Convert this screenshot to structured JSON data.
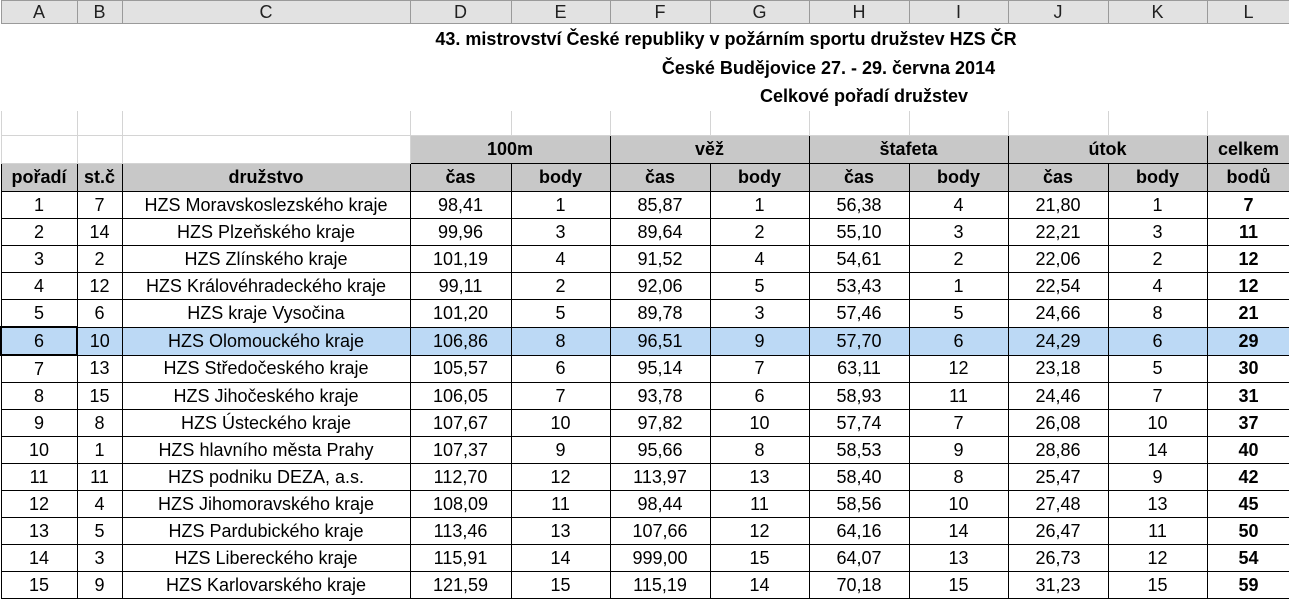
{
  "columns": [
    "A",
    "B",
    "C",
    "D",
    "E",
    "F",
    "G",
    "H",
    "I",
    "J",
    "K",
    "L"
  ],
  "title": "43. mistrovství České republiky v požárním sportu družstev HZS ČR",
  "subtitle": "České Budějovice 27. - 29. června 2014",
  "subtitle2": "Celkové pořadí družstev",
  "group_headers": {
    "g100m": "100m",
    "veze": "věž",
    "stafeta": "štafeta",
    "utok": "útok",
    "celkem": "celkem"
  },
  "headers": {
    "poradi": "pořadí",
    "stc": "st.č",
    "druzstvo": "družstvo",
    "cas": "čas",
    "body": "body",
    "bodu": "bodů"
  },
  "rows": [
    [
      "1",
      "7",
      "HZS Moravskoslezského kraje",
      "98,41",
      "1",
      "85,87",
      "1",
      "56,38",
      "4",
      "21,80",
      "1",
      "7"
    ],
    [
      "2",
      "14",
      "HZS Plzeňského kraje",
      "99,96",
      "3",
      "89,64",
      "2",
      "55,10",
      "3",
      "22,21",
      "3",
      "11"
    ],
    [
      "3",
      "2",
      "HZS Zlínského kraje",
      "101,19",
      "4",
      "91,52",
      "4",
      "54,61",
      "2",
      "22,06",
      "2",
      "12"
    ],
    [
      "4",
      "12",
      "HZS Královéhradeckého kraje",
      "99,11",
      "2",
      "92,06",
      "5",
      "53,43",
      "1",
      "22,54",
      "4",
      "12"
    ],
    [
      "5",
      "6",
      "HZS kraje Vysočina",
      "101,20",
      "5",
      "89,78",
      "3",
      "57,46",
      "5",
      "24,66",
      "8",
      "21"
    ],
    [
      "6",
      "10",
      "HZS Olomouckého kraje",
      "106,86",
      "8",
      "96,51",
      "9",
      "57,70",
      "6",
      "24,29",
      "6",
      "29"
    ],
    [
      "7",
      "13",
      "HZS Středočeského kraje",
      "105,57",
      "6",
      "95,14",
      "7",
      "63,11",
      "12",
      "23,18",
      "5",
      "30"
    ],
    [
      "8",
      "15",
      "HZS Jihočeského kraje",
      "106,05",
      "7",
      "93,78",
      "6",
      "58,93",
      "11",
      "24,46",
      "7",
      "31"
    ],
    [
      "9",
      "8",
      "HZS Ústeckého kraje",
      "107,67",
      "10",
      "97,82",
      "10",
      "57,74",
      "7",
      "26,08",
      "10",
      "37"
    ],
    [
      "10",
      "1",
      "HZS hlavního města Prahy",
      "107,37",
      "9",
      "95,66",
      "8",
      "58,53",
      "9",
      "28,86",
      "14",
      "40"
    ],
    [
      "11",
      "11",
      "HZS podniku DEZA, a.s.",
      "112,70",
      "12",
      "113,97",
      "13",
      "58,40",
      "8",
      "25,47",
      "9",
      "42"
    ],
    [
      "12",
      "4",
      "HZS Jihomoravského kraje",
      "108,09",
      "11",
      "98,44",
      "11",
      "58,56",
      "10",
      "27,48",
      "13",
      "45"
    ],
    [
      "13",
      "5",
      "HZS Pardubického kraje",
      "113,46",
      "13",
      "107,66",
      "12",
      "64,16",
      "14",
      "26,47",
      "11",
      "50"
    ],
    [
      "14",
      "3",
      "HZS Libereckého kraje",
      "115,91",
      "14",
      "999,00",
      "15",
      "64,07",
      "13",
      "26,73",
      "12",
      "54"
    ],
    [
      "15",
      "9",
      "HZS Karlovarského kraje",
      "121,59",
      "15",
      "115,19",
      "14",
      "70,18",
      "15",
      "31,23",
      "15",
      "59"
    ]
  ],
  "selected_row_index": 5
}
